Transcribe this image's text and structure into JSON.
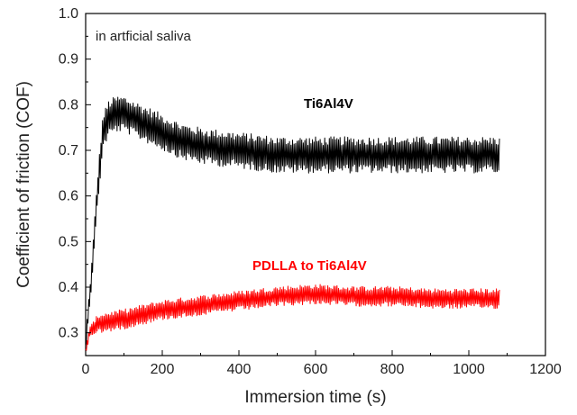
{
  "chart_data": {
    "type": "line",
    "xlabel": "Immersion time (s)",
    "ylabel": "Coefficient of friction (COF)",
    "xlim": [
      0,
      1200
    ],
    "ylim": [
      0.25,
      1.0
    ],
    "x_ticks": [
      "0",
      "200",
      "400",
      "600",
      "800",
      "1000",
      "1200"
    ],
    "y_ticks": [
      "0.3",
      "0.4",
      "0.5",
      "0.6",
      "0.7",
      "0.8",
      "0.9",
      "1.0"
    ],
    "grid": false,
    "annotation": "in artficial saliva",
    "series": [
      {
        "name": "Ti6Al4V",
        "color": "#000000",
        "noise": 0.04,
        "points": [
          [
            0,
            0.26
          ],
          [
            5,
            0.33
          ],
          [
            15,
            0.42
          ],
          [
            30,
            0.6
          ],
          [
            45,
            0.74
          ],
          [
            60,
            0.77
          ],
          [
            80,
            0.78
          ],
          [
            100,
            0.78
          ],
          [
            150,
            0.76
          ],
          [
            200,
            0.74
          ],
          [
            250,
            0.72
          ],
          [
            300,
            0.71
          ],
          [
            400,
            0.7
          ],
          [
            500,
            0.69
          ],
          [
            600,
            0.69
          ],
          [
            700,
            0.69
          ],
          [
            800,
            0.69
          ],
          [
            900,
            0.69
          ],
          [
            1000,
            0.69
          ],
          [
            1080,
            0.69
          ]
        ]
      },
      {
        "name": "PDLLA to Ti6Al4V",
        "color": "#ff0000",
        "noise": 0.022,
        "points": [
          [
            0,
            0.26
          ],
          [
            10,
            0.3
          ],
          [
            30,
            0.32
          ],
          [
            100,
            0.33
          ],
          [
            200,
            0.35
          ],
          [
            300,
            0.36
          ],
          [
            400,
            0.37
          ],
          [
            500,
            0.38
          ],
          [
            600,
            0.385
          ],
          [
            700,
            0.38
          ],
          [
            800,
            0.38
          ],
          [
            900,
            0.375
          ],
          [
            1000,
            0.375
          ],
          [
            1080,
            0.375
          ]
        ]
      }
    ]
  }
}
